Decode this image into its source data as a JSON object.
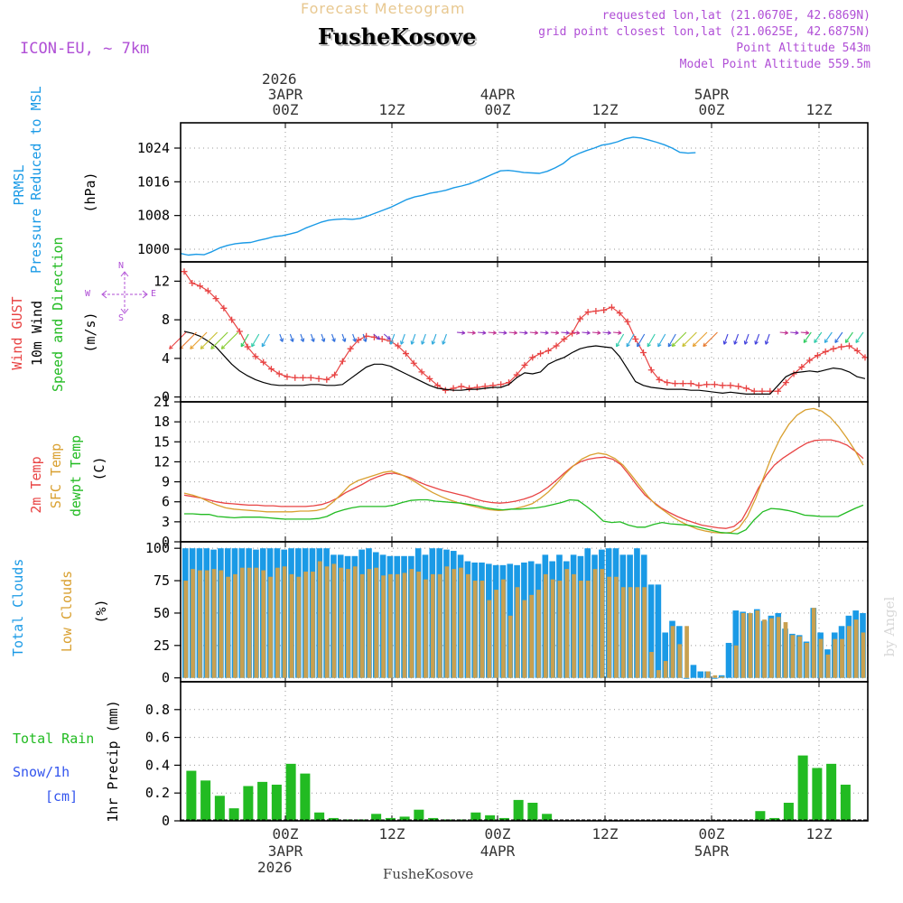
{
  "header": {
    "title": "Forecast Meteogram",
    "location": "FusheKosove",
    "model": "ICON-EU, ~ 7km",
    "requested": "requested lon,lat (21.0670E, 42.6869N)",
    "grid_point": "grid point closest lon,lat (21.0625E, 42.6875N)",
    "point_alt": "Point Altitude 543m",
    "model_alt": "Model Point Altitude 559.5m",
    "credit": "by Angel",
    "footer": "FusheKosove"
  },
  "top_axis": {
    "year": "2026",
    "ticks": [
      {
        "top": "3APR",
        "label": "00Z"
      },
      {
        "top": "",
        "label": "12Z"
      },
      {
        "top": "4APR",
        "label": "00Z"
      },
      {
        "top": "",
        "label": "12Z"
      },
      {
        "top": "5APR",
        "label": "00Z"
      },
      {
        "top": "",
        "label": "12Z"
      }
    ]
  },
  "bottom_axis": {
    "year": "2026",
    "ticks": [
      {
        "label": "00Z",
        "date": "3APR"
      },
      {
        "label": "12Z",
        "date": ""
      },
      {
        "label": "00Z",
        "date": "4APR"
      },
      {
        "label": "12Z",
        "date": ""
      },
      {
        "label": "00Z",
        "date": "5APR"
      },
      {
        "label": "12Z",
        "date": ""
      }
    ]
  },
  "panel_labels": {
    "pressure": {
      "l1": "PRMSL",
      "l2": "Pressure Reduced to MSL",
      "unit": "(hPa)"
    },
    "wind": {
      "l1": "Wind GUST",
      "l2": "10m Wind",
      "l3": "Speed and Direction",
      "unit": "(m/s)",
      "compass_n": "N",
      "compass_s": "S",
      "compass_w": "W",
      "compass_e": "E"
    },
    "temp": {
      "l1": "2m Temp",
      "l2": "SFC Temp",
      "l3": "dewpt Temp",
      "unit": "(C)"
    },
    "clouds": {
      "l1": "Total Clouds",
      "l2": "Low Clouds",
      "unit": "(%)"
    },
    "precip": {
      "l1": "Total  Rain",
      "l2": "Snow/1h",
      "l3": "[cm]",
      "unit": "1hr Precip (mm)"
    }
  },
  "colors": {
    "pressure": "#1a9ae6",
    "gust": "#e84444",
    "wind": "#000000",
    "temp2m": "#e84444",
    "sfc": "#d9a030",
    "dewpt": "#22bb22",
    "total_cloud": "#1a9ae6",
    "low_cloud": "#c8a050",
    "rain": "#22bb22",
    "label_purple": "#b04fd6",
    "title_gold": "#e8c890",
    "snow": "#3355ee"
  },
  "chart_data": [
    {
      "type": "line",
      "title": "PRMSL Pressure Reduced to MSL",
      "ylabel": "(hPa)",
      "ylim": [
        997,
        1030
      ],
      "yticks": [
        1000,
        1008,
        1016,
        1024
      ],
      "x_hours": "-18 to 46 hourly (0 = 3APR 00Z)",
      "series": [
        {
          "name": "PRMSL",
          "values": [
            999.0,
            998.6,
            998.8,
            998.7,
            999.4,
            1000.3,
            1000.9,
            1001.3,
            1001.5,
            1001.6,
            1002.1,
            1002.5,
            1003.0,
            1003.2,
            1003.6,
            1004.1,
            1005.0,
            1005.7,
            1006.4,
            1006.9,
            1007.1,
            1007.2,
            1007.1,
            1007.3,
            1007.9,
            1008.6,
            1009.3,
            1010.0,
            1010.9,
            1011.8,
            1012.4,
            1012.8,
            1013.3,
            1013.6,
            1014.0,
            1014.6,
            1015.0,
            1015.5,
            1016.2,
            1017.0,
            1017.8,
            1018.6,
            1018.7,
            1018.5,
            1018.2,
            1018.1,
            1018.0,
            1018.5,
            1019.3,
            1020.3,
            1021.8,
            1022.7,
            1023.4,
            1024.0,
            1024.7,
            1025.0,
            1025.5,
            1026.2,
            1026.6,
            1026.4,
            1025.9,
            1025.4,
            1024.8,
            1024.0,
            1023.0,
            1022.8,
            1022.9
          ]
        }
      ]
    },
    {
      "type": "line",
      "title": "Wind GUST / 10m Wind Speed and Direction",
      "ylabel": "(m/s)",
      "ylim": [
        -0.5,
        14
      ],
      "yticks": [
        0,
        4,
        8,
        12
      ],
      "series": [
        {
          "name": "Wind GUST",
          "values": [
            13.0,
            11.8,
            11.5,
            11.0,
            10.2,
            9.2,
            8.0,
            6.8,
            5.2,
            4.2,
            3.6,
            2.9,
            2.4,
            2.1,
            2.0,
            2.0,
            2.0,
            1.9,
            1.8,
            2.3,
            3.7,
            5.0,
            5.9,
            6.3,
            6.2,
            6.0,
            5.8,
            5.3,
            4.5,
            3.5,
            2.6,
            1.9,
            1.2,
            0.7,
            0.9,
            1.1,
            0.9,
            1.0,
            1.1,
            1.2,
            1.3,
            1.5,
            2.3,
            3.3,
            4.1,
            4.5,
            4.8,
            5.3,
            6.0,
            6.6,
            8.1,
            8.8,
            8.9,
            9.0,
            9.3,
            8.7,
            7.8,
            6.0,
            4.6,
            2.8,
            1.8,
            1.5,
            1.4,
            1.4,
            1.4,
            1.2,
            1.3,
            1.3,
            1.2,
            1.2,
            1.1,
            0.9,
            0.6,
            0.6,
            0.6,
            0.6,
            1.5,
            2.4,
            3.1,
            3.8,
            4.3,
            4.7,
            5.0,
            5.2,
            5.3,
            4.8,
            4.1
          ]
        },
        {
          "name": "10m Wind",
          "values": [
            6.8,
            6.6,
            6.3,
            5.8,
            5.2,
            4.3,
            3.4,
            2.7,
            2.2,
            1.8,
            1.5,
            1.3,
            1.2,
            1.2,
            1.2,
            1.2,
            1.3,
            1.3,
            1.2,
            1.2,
            1.3,
            1.9,
            2.5,
            3.1,
            3.4,
            3.4,
            3.2,
            2.8,
            2.4,
            2.0,
            1.6,
            1.2,
            0.9,
            0.8,
            0.7,
            0.7,
            0.8,
            0.8,
            0.9,
            1.0,
            1.0,
            1.3,
            2.0,
            2.5,
            2.4,
            2.6,
            3.4,
            3.8,
            4.1,
            4.6,
            5.0,
            5.2,
            5.3,
            5.2,
            5.1,
            4.2,
            2.9,
            1.6,
            1.2,
            1.0,
            0.9,
            0.8,
            0.8,
            0.8,
            0.7,
            0.7,
            0.6,
            0.5,
            0.4,
            0.5,
            0.4,
            0.3,
            0.3,
            0.3,
            0.3,
            1.2,
            2.1,
            2.5,
            2.6,
            2.7,
            2.6,
            2.8,
            3.0,
            2.9,
            2.6,
            2.1,
            1.9
          ]
        }
      ]
    },
    {
      "type": "line",
      "title": "2m Temp / SFC Temp / dewpt Temp",
      "ylabel": "(C)",
      "ylim": [
        0,
        21
      ],
      "yticks": [
        0,
        3,
        6,
        9,
        12,
        15,
        18,
        21
      ],
      "series": [
        {
          "name": "2m Temp",
          "values": [
            7.0,
            6.8,
            6.6,
            6.3,
            6.0,
            5.8,
            5.7,
            5.6,
            5.5,
            5.5,
            5.4,
            5.4,
            5.3,
            5.3,
            5.3,
            5.3,
            5.4,
            5.6,
            6.0,
            6.6,
            7.4,
            8.0,
            8.6,
            9.3,
            9.8,
            10.2,
            10.3,
            10.0,
            9.6,
            9.0,
            8.5,
            8.1,
            7.7,
            7.4,
            7.1,
            6.8,
            6.4,
            6.1,
            5.9,
            5.8,
            5.9,
            6.1,
            6.4,
            6.8,
            7.4,
            8.2,
            9.2,
            10.3,
            11.3,
            12.0,
            12.4,
            12.6,
            12.7,
            12.4,
            11.6,
            10.1,
            8.5,
            7.0,
            6.0,
            5.1,
            4.4,
            3.8,
            3.3,
            2.9,
            2.5,
            2.3,
            2.1,
            2.0,
            2.3,
            3.3,
            5.5,
            8.0,
            10.0,
            11.5,
            12.5,
            13.3,
            14.1,
            14.8,
            15.2,
            15.3,
            15.3,
            15.0,
            14.5,
            13.6,
            12.5
          ]
        },
        {
          "name": "SFC Temp",
          "values": [
            7.3,
            7.0,
            6.6,
            6.0,
            5.5,
            5.1,
            4.9,
            4.8,
            4.7,
            4.6,
            4.5,
            4.5,
            4.5,
            4.5,
            4.6,
            4.6,
            4.7,
            5.0,
            6.0,
            7.2,
            8.5,
            9.2,
            9.6,
            10.0,
            10.4,
            10.6,
            10.2,
            9.6,
            8.9,
            8.1,
            7.4,
            6.8,
            6.3,
            5.9,
            5.6,
            5.3,
            5.0,
            4.8,
            4.7,
            4.8,
            5.0,
            5.3,
            5.7,
            6.5,
            7.5,
            8.8,
            10.2,
            11.4,
            12.4,
            13.0,
            13.3,
            13.1,
            12.5,
            11.5,
            10.0,
            8.4,
            6.8,
            5.5,
            4.6,
            3.7,
            3.0,
            2.4,
            1.9,
            1.6,
            1.4,
            1.3,
            1.4,
            2.1,
            3.8,
            6.5,
            9.8,
            13.0,
            15.6,
            17.6,
            19.0,
            19.8,
            20.0,
            19.6,
            18.7,
            17.3,
            15.6,
            13.7,
            11.5
          ]
        },
        {
          "name": "dewpt Temp",
          "values": [
            4.2,
            4.2,
            4.1,
            4.1,
            3.8,
            3.7,
            3.6,
            3.7,
            3.7,
            3.7,
            3.6,
            3.5,
            3.4,
            3.4,
            3.4,
            3.4,
            3.5,
            3.8,
            4.4,
            4.8,
            5.1,
            5.3,
            5.3,
            5.3,
            5.3,
            5.5,
            5.9,
            6.2,
            6.3,
            6.3,
            6.1,
            6.0,
            5.9,
            5.8,
            5.6,
            5.4,
            5.1,
            4.9,
            4.8,
            4.9,
            4.9,
            5.0,
            5.1,
            5.3,
            5.6,
            5.9,
            6.3,
            6.2,
            5.3,
            4.3,
            3.1,
            2.9,
            3.0,
            2.5,
            2.2,
            2.2,
            2.6,
            2.9,
            2.7,
            2.6,
            2.5,
            2.3,
            2.0,
            1.7,
            1.4,
            1.3,
            1.2,
            1.8,
            3.3,
            4.5,
            5.0,
            4.9,
            4.7,
            4.4,
            4.0,
            3.9,
            3.8,
            3.8,
            3.8,
            4.4,
            5.0,
            5.5
          ]
        }
      ]
    },
    {
      "type": "bar",
      "title": "Total Clouds / Low Clouds",
      "ylabel": "(%)",
      "ylim": [
        -3,
        105
      ],
      "yticks": [
        0,
        25,
        50,
        75,
        100
      ],
      "series": [
        {
          "name": "Total Clouds",
          "values": [
            100,
            100,
            100,
            100,
            99,
            100,
            100,
            100,
            100,
            100,
            99,
            100,
            100,
            100,
            99,
            100,
            100,
            100,
            100,
            100,
            100,
            95,
            95,
            94,
            94,
            99,
            100,
            97,
            95,
            94,
            94,
            94,
            94,
            100,
            95,
            100,
            100,
            99,
            98,
            95,
            90,
            89,
            89,
            88,
            87,
            87,
            88,
            87,
            89,
            90,
            88,
            95,
            90,
            95,
            90,
            95,
            94,
            100,
            95,
            99,
            100,
            100,
            95,
            95,
            100,
            95,
            72,
            72,
            35,
            44,
            40,
            0,
            10,
            5,
            5,
            0,
            2,
            27,
            52,
            51,
            50,
            53,
            44,
            48,
            50,
            38,
            34,
            33,
            28,
            54,
            35,
            22,
            35,
            40,
            48,
            52,
            50
          ]
        },
        {
          "name": "Low Clouds",
          "values": [
            75,
            84,
            83,
            83,
            84,
            83,
            78,
            80,
            85,
            85,
            85,
            83,
            78,
            85,
            86,
            80,
            78,
            82,
            82,
            90,
            86,
            88,
            85,
            84,
            86,
            80,
            84,
            85,
            79,
            80,
            80,
            81,
            84,
            82,
            76,
            80,
            80,
            86,
            84,
            85,
            80,
            75,
            75,
            60,
            68,
            76,
            48,
            70,
            60,
            64,
            68,
            80,
            76,
            75,
            84,
            80,
            75,
            75,
            84,
            84,
            78,
            78,
            70,
            70,
            70,
            70,
            20,
            6,
            13,
            40,
            26,
            40,
            0,
            0,
            5,
            2,
            1,
            0,
            25,
            50,
            50,
            52,
            45,
            46,
            47,
            43,
            33,
            32,
            27,
            54,
            30,
            18,
            30,
            30,
            40,
            45,
            35
          ]
        }
      ]
    },
    {
      "type": "bar",
      "title": "Total Rain 1hr Precip",
      "ylabel": "1hr Precip (mm)",
      "ylim": [
        0,
        1.0
      ],
      "yticks": [
        0,
        0.2,
        0.4,
        0.6,
        0.8
      ],
      "series": [
        {
          "name": "Total Rain",
          "values": [
            0.36,
            0.29,
            0.18,
            0.09,
            0.25,
            0.28,
            0.26,
            0.41,
            0.34,
            0.06,
            0.02,
            0.01,
            0.01,
            0.05,
            0.02,
            0.03,
            0.08,
            0.02,
            0.01,
            0.01,
            0.06,
            0.04,
            0.02,
            0.15,
            0.13,
            0.05,
            0.0,
            0.0,
            0.0,
            0.0,
            0.0,
            0.0,
            0.0,
            0.0,
            0.0,
            0.0,
            0.0,
            0.0,
            0.0,
            0.0,
            0.07,
            0.02,
            0.13,
            0.47,
            0.38,
            0.41,
            0.26,
            0.0
          ]
        }
      ]
    }
  ]
}
